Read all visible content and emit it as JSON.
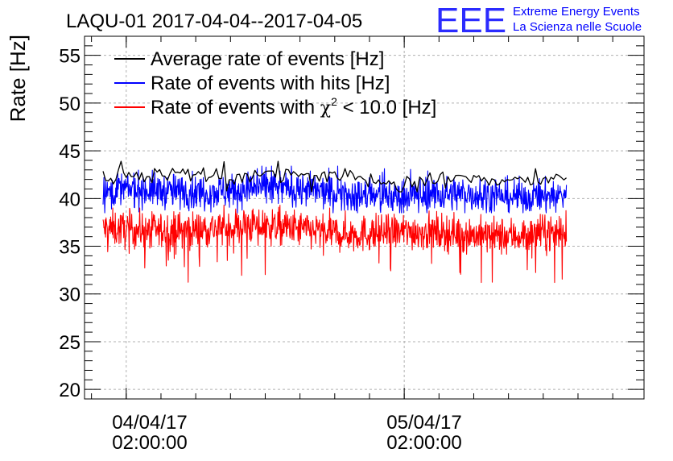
{
  "chart_data": {
    "type": "line",
    "title": "LAQU-01 2017-04-04--2017-04-05",
    "xlabel": "",
    "ylabel": "Rate [Hz]",
    "ylim": [
      19,
      57
    ],
    "y_ticks": [
      20,
      25,
      30,
      35,
      40,
      45,
      50,
      55
    ],
    "x_unit": "hours since 2017-04-04 00:00",
    "xlim": [
      -1.6,
      46.7
    ],
    "x_ticks": [
      {
        "value": 2,
        "label_date": "04/04/17",
        "label_time": "02:00:00"
      },
      {
        "value": 26,
        "label_date": "05/04/17",
        "label_time": "02:00:00"
      }
    ],
    "grid": true,
    "legend_position": "top-left",
    "series": [
      {
        "name": "Average rate of events [Hz]",
        "legend_text": "Average rate of events [Hz]",
        "color": "#000000",
        "x_start": 0.0,
        "x_end": 40.0,
        "mean": 42.2,
        "min": 40.7,
        "max": 43.9
      },
      {
        "name": "Rate of events with hits [Hz]",
        "legend_text": "Rate of events with hits [Hz]",
        "color": "#0000ff",
        "x_start": 0.0,
        "x_end": 40.0,
        "mean": 40.6,
        "min": 38.5,
        "max": 43.4
      },
      {
        "name": "Rate of events with chi2 < 10.0 [Hz]",
        "legend_text": "Rate of events with",
        "legend_chi": "χ",
        "legend_sup": "2",
        "legend_tail": " < 10.0 [Hz]",
        "color": "#ff0000",
        "x_start": 0.0,
        "x_end": 40.0,
        "mean": 36.6,
        "min": 31.2,
        "max": 39.3
      }
    ]
  },
  "logo": {
    "mark": "EEE",
    "line1": "Extreme Energy Events",
    "line2": "La Scienza nelle Scuole",
    "color": "#0000ff"
  }
}
